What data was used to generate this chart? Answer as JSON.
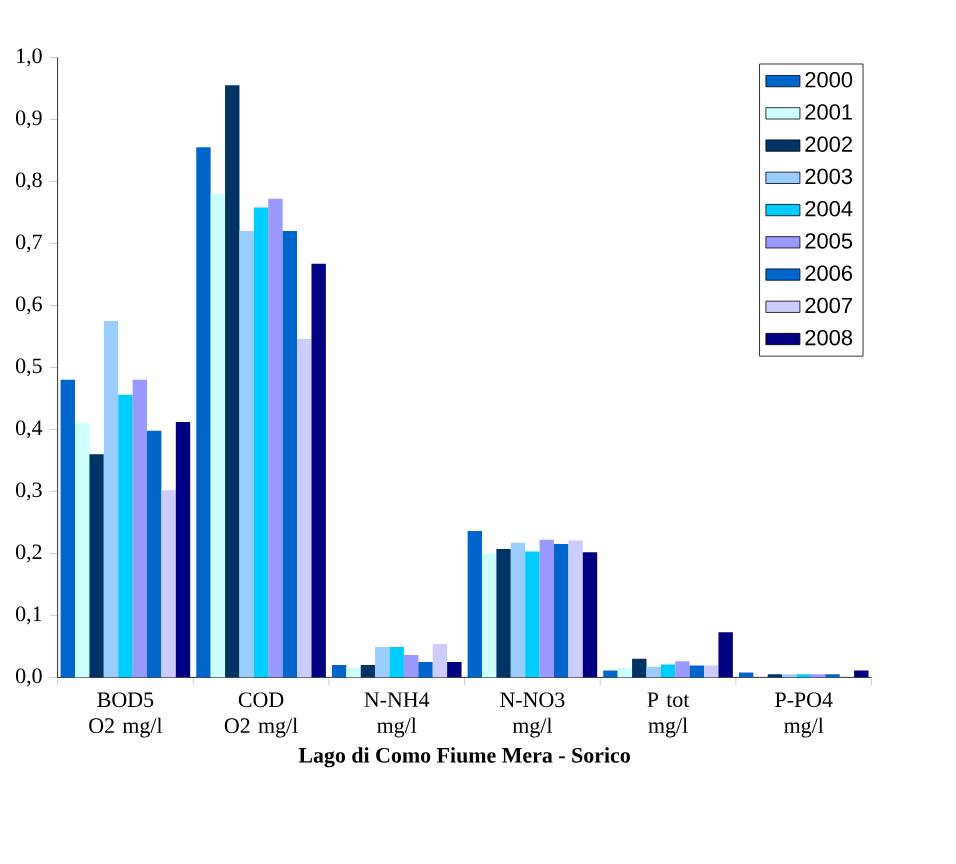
{
  "chart_data": {
    "type": "bar",
    "xlabel": "Lago di Como Fiume Mera - Sorico",
    "categories": [
      "BOD5 O2 mg/l",
      "COD O2 mg/l",
      "N-NH4 mg/l",
      "N-NO3 mg/l",
      "P tot mg/l",
      "P-PO4 mg/l"
    ],
    "series": [
      {
        "name": "2000",
        "color": "#0066cc",
        "values": [
          0.48,
          0.855,
          0.02,
          0.236,
          0.011,
          0.008
        ]
      },
      {
        "name": "2001",
        "color": "#ccffff",
        "values": [
          0.41,
          0.78,
          0.015,
          0.2,
          0.015,
          null
        ]
      },
      {
        "name": "2002",
        "color": "#003366",
        "values": [
          0.36,
          0.955,
          0.02,
          0.207,
          0.03,
          0.005
        ]
      },
      {
        "name": "2003",
        "color": "#99ccff",
        "values": [
          0.575,
          0.72,
          0.049,
          0.217,
          0.017,
          0.005
        ]
      },
      {
        "name": "2004",
        "color": "#00ccff",
        "values": [
          0.456,
          0.758,
          0.049,
          0.203,
          0.021,
          0.005
        ]
      },
      {
        "name": "2005",
        "color": "#9999ff",
        "values": [
          0.48,
          0.772,
          0.036,
          0.222,
          0.026,
          0.005
        ]
      },
      {
        "name": "2006",
        "color": "#0066cc",
        "values": [
          0.398,
          0.72,
          0.025,
          0.215,
          0.019,
          0.005
        ]
      },
      {
        "name": "2007",
        "color": "#ccccff",
        "values": [
          0.302,
          0.546,
          0.054,
          0.221,
          0.019,
          null
        ]
      },
      {
        "name": "2008",
        "color": "#000080",
        "values": [
          0.412,
          0.667,
          0.025,
          0.202,
          0.073,
          0.011
        ]
      }
    ],
    "ylim": [
      0,
      1.0
    ],
    "yticks": [
      {
        "value": 0,
        "label": "0,0"
      },
      {
        "value": 0.1,
        "label": "0,1"
      },
      {
        "value": 0.2,
        "label": "0,2"
      },
      {
        "value": 0.3,
        "label": "0,3"
      },
      {
        "value": 0.4,
        "label": "0,4"
      },
      {
        "value": 0.5,
        "label": "0,5"
      },
      {
        "value": 0.6,
        "label": "0,6"
      },
      {
        "value": 0.7,
        "label": "0,7"
      },
      {
        "value": 0.8,
        "label": "0,8"
      },
      {
        "value": 0.9,
        "label": "0,9"
      },
      {
        "value": 1.0,
        "label": "1,0"
      }
    ],
    "legend": "top right",
    "grid": false
  }
}
